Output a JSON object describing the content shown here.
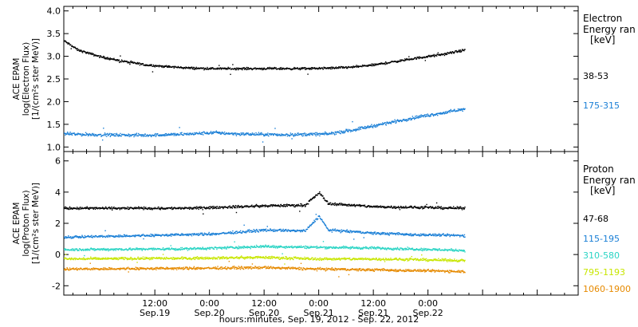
{
  "chart_data": {
    "type": "scatter",
    "x_axis": {
      "range_hours": [
        -8,
        105
      ],
      "major_ticks": [
        {
          "hours": 12,
          "time": "12:00",
          "date": "Sep.19"
        },
        {
          "hours": 24,
          "time": "0:00",
          "date": "Sep.20"
        },
        {
          "hours": 36,
          "time": "12:00",
          "date": "Sep.20"
        },
        {
          "hours": 48,
          "time": "0:00",
          "date": "Sep.21"
        },
        {
          "hours": 60,
          "time": "12:00",
          "date": "Sep.21"
        },
        {
          "hours": 72,
          "time": "0:00",
          "date": "Sep.22"
        }
      ],
      "caption": "hours:minutes, Sep. 19, 2012 - Sep. 22, 2012"
    },
    "panels": [
      {
        "id": "electron",
        "ylabel_lines": [
          "ACE EPAM",
          "log(Electron Flux)",
          "[1/(cm²s ster MeV)]"
        ],
        "ylim": [
          0.9,
          4.1
        ],
        "yticks": [
          1.0,
          1.5,
          2.0,
          2.5,
          3.0,
          3.5,
          4.0
        ],
        "tick_labels": [
          "1.0",
          "1.5",
          "2.0",
          "2.5",
          "3.0",
          "3.5",
          "4.0"
        ],
        "legend_title": [
          "Electron",
          "Energy ran",
          "[keV]"
        ],
        "series": [
          {
            "name": "38-53",
            "color": "#000000",
            "points": [
              [
                -8,
                3.35
              ],
              [
                -5,
                3.15
              ],
              [
                0,
                3.0
              ],
              [
                5,
                2.9
              ],
              [
                10,
                2.82
              ],
              [
                15,
                2.78
              ],
              [
                20,
                2.75
              ],
              [
                25,
                2.74
              ],
              [
                30,
                2.74
              ],
              [
                35,
                2.74
              ],
              [
                40,
                2.74
              ],
              [
                45,
                2.74
              ],
              [
                50,
                2.75
              ],
              [
                55,
                2.77
              ],
              [
                60,
                2.82
              ],
              [
                65,
                2.9
              ],
              [
                70,
                2.98
              ],
              [
                75,
                3.05
              ],
              [
                80,
                3.15
              ]
            ]
          },
          {
            "name": "175-315",
            "color": "#1a7fd6",
            "points": [
              [
                -8,
                1.3
              ],
              [
                0,
                1.28
              ],
              [
                10,
                1.27
              ],
              [
                20,
                1.3
              ],
              [
                25,
                1.33
              ],
              [
                30,
                1.3
              ],
              [
                40,
                1.28
              ],
              [
                50,
                1.3
              ],
              [
                55,
                1.38
              ],
              [
                60,
                1.48
              ],
              [
                65,
                1.58
              ],
              [
                70,
                1.68
              ],
              [
                75,
                1.76
              ],
              [
                80,
                1.85
              ]
            ]
          }
        ]
      },
      {
        "id": "proton",
        "ylabel_lines": [
          "ACE EPAM",
          "log(Proton Flux)",
          "[1/(cm²s ster MeV)]"
        ],
        "ylim": [
          -2.6,
          6.6
        ],
        "yticks": [
          -2,
          0,
          2,
          4,
          6
        ],
        "tick_labels": [
          "-2",
          "0",
          "2",
          "4",
          "6"
        ],
        "legend_title": [
          "Proton",
          "Energy ran",
          "[keV]"
        ],
        "series": [
          {
            "name": "47-68",
            "color": "#000000",
            "points": [
              [
                -8,
                3.0
              ],
              [
                20,
                3.0
              ],
              [
                36,
                3.15
              ],
              [
                45,
                3.2
              ],
              [
                48,
                4.0
              ],
              [
                50,
                3.3
              ],
              [
                60,
                3.1
              ],
              [
                80,
                3.0
              ]
            ]
          },
          {
            "name": "115-195",
            "color": "#1a7fd6",
            "points": [
              [
                -8,
                1.15
              ],
              [
                10,
                1.25
              ],
              [
                25,
                1.35
              ],
              [
                36,
                1.6
              ],
              [
                45,
                1.55
              ],
              [
                48,
                2.5
              ],
              [
                50,
                1.6
              ],
              [
                60,
                1.4
              ],
              [
                70,
                1.3
              ],
              [
                80,
                1.25
              ]
            ]
          },
          {
            "name": "310-580",
            "color": "#2ad4c4",
            "points": [
              [
                -8,
                0.35
              ],
              [
                20,
                0.4
              ],
              [
                36,
                0.55
              ],
              [
                48,
                0.5
              ],
              [
                60,
                0.45
              ],
              [
                80,
                0.3
              ]
            ]
          },
          {
            "name": "795-1193",
            "color": "#c8e600",
            "points": [
              [
                -8,
                -0.25
              ],
              [
                20,
                -0.2
              ],
              [
                36,
                -0.15
              ],
              [
                48,
                -0.25
              ],
              [
                60,
                -0.25
              ],
              [
                80,
                -0.35
              ]
            ]
          },
          {
            "name": "1060-1900",
            "color": "#e68a00",
            "points": [
              [
                -8,
                -0.9
              ],
              [
                20,
                -0.85
              ],
              [
                36,
                -0.8
              ],
              [
                48,
                -0.9
              ],
              [
                60,
                -0.95
              ],
              [
                80,
                -1.05
              ]
            ]
          }
        ]
      }
    ]
  }
}
